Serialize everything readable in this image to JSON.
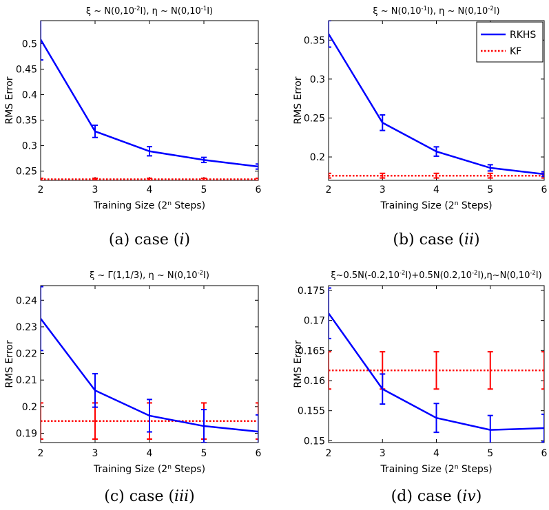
{
  "chart_data": [
    {
      "type": "line",
      "title": "ξ ~ N(0,10-2I), η ~ N(0,10-1I)",
      "title_parts": [
        "ξ ~ N(0,10",
        "-2",
        "I), η ~ N(0,10",
        "-1",
        "I)"
      ],
      "caption": "(a) case (i)",
      "caption_parts": [
        "(a) case (",
        "i",
        ")"
      ],
      "xlabel": "Training Size (2n Steps)",
      "xlabel_parts": [
        "Training Size (2",
        "n",
        " Steps)"
      ],
      "ylabel": "RMS Error",
      "x": [
        2,
        3,
        4,
        5,
        6
      ],
      "xlim": [
        2,
        6
      ],
      "ylim": [
        0.232,
        0.545
      ],
      "yticks": [
        0.25,
        0.3,
        0.35,
        0.4,
        0.45,
        0.5
      ],
      "ytick_labels": [
        "0.25",
        "0.3",
        "0.35",
        "0.4",
        "0.45",
        "0.5"
      ],
      "series": [
        {
          "name": "RKHS",
          "color": "#0000ff",
          "dash": "solid",
          "values": [
            0.508,
            0.328,
            0.289,
            0.272,
            0.259
          ],
          "errors": [
            0.04,
            0.012,
            0.009,
            0.005,
            0.005
          ]
        },
        {
          "name": "KF",
          "color": "#ff0000",
          "dash": "dotted",
          "values": [
            0.234,
            0.234,
            0.234,
            0.234,
            0.234
          ],
          "errors": [
            0.002,
            0.002,
            0.002,
            0.002,
            0.002
          ]
        }
      ]
    },
    {
      "type": "line",
      "title": "ξ ~ N(0,10-1I), η ~ N(0,10-2I)",
      "title_parts": [
        "ξ ~ N(0,10",
        "-1",
        "I), η ~ N(0,10",
        "-2",
        "I)"
      ],
      "caption": "(b) case (ii)",
      "caption_parts": [
        "(b) case (",
        "ii",
        ")"
      ],
      "xlabel": "Training Size (2n Steps)",
      "xlabel_parts": [
        "Training Size (2",
        "n",
        " Steps)"
      ],
      "ylabel": "RMS Error",
      "x": [
        2,
        3,
        4,
        5,
        6
      ],
      "xlim": [
        2,
        6
      ],
      "ylim": [
        0.17,
        0.375
      ],
      "yticks": [
        0.2,
        0.25,
        0.3,
        0.35
      ],
      "ytick_labels": [
        "0.2",
        "0.25",
        "0.3",
        "0.35"
      ],
      "legend": {
        "position": "top-right",
        "entries": [
          "RKHS",
          "KF"
        ]
      },
      "series": [
        {
          "name": "RKHS",
          "color": "#0000ff",
          "dash": "solid",
          "values": [
            0.358,
            0.244,
            0.207,
            0.186,
            0.178
          ],
          "errors": [
            0.017,
            0.01,
            0.006,
            0.004,
            0.003
          ]
        },
        {
          "name": "KF",
          "color": "#ff0000",
          "dash": "dotted",
          "values": [
            0.176,
            0.176,
            0.176,
            0.176,
            0.176
          ],
          "errors": [
            0.003,
            0.003,
            0.003,
            0.003,
            0.003
          ]
        }
      ]
    },
    {
      "type": "line",
      "title": "ξ ~ Γ(1,1/3), η ~ N(0,10-2I)",
      "title_parts": [
        "ξ ~ Γ(1,1/3), η ~ N(0,10",
        "-2",
        "I)"
      ],
      "caption": "(c) case (iii)",
      "caption_parts": [
        "(c) case (",
        "iii",
        ")"
      ],
      "xlabel": "Training Size (2n Steps)",
      "xlabel_parts": [
        "Training Size (2",
        "n",
        " Steps)"
      ],
      "ylabel": "RMS Error",
      "x": [
        2,
        3,
        4,
        5,
        6
      ],
      "xlim": [
        2,
        6
      ],
      "ylim": [
        0.1865,
        0.2455
      ],
      "yticks": [
        0.19,
        0.2,
        0.21,
        0.22,
        0.23,
        0.24
      ],
      "ytick_labels": [
        "0.19",
        "0.2",
        "0.21",
        "0.22",
        "0.23",
        "0.24"
      ],
      "series": [
        {
          "name": "RKHS",
          "color": "#0000ff",
          "dash": "solid",
          "values": [
            0.2331,
            0.2061,
            0.1966,
            0.1927,
            0.1906
          ],
          "errors": [
            0.012,
            0.0063,
            0.0061,
            0.0062,
            0.0063
          ]
        },
        {
          "name": "KF",
          "color": "#ff0000",
          "dash": "dotted",
          "values": [
            0.1946,
            0.1946,
            0.1946,
            0.1946,
            0.1946
          ],
          "errors": [
            0.0068,
            0.0068,
            0.0068,
            0.0068,
            0.0068
          ]
        }
      ]
    },
    {
      "type": "line",
      "title": "ξ~0.5N(-0.2,10-2I)+0.5N(0.2,10-2I),η~N(0,10-2I)",
      "title_parts": [
        "ξ~0.5N(-0.2,10",
        "-2",
        "I)+0.5N(0.2,10",
        "-2",
        "I),η~N(0,10",
        "-2",
        "I)"
      ],
      "caption": "(d) case (iv)",
      "caption_parts": [
        "(d) case (",
        "iv",
        ")"
      ],
      "xlabel": "Training Size (2n Steps)",
      "xlabel_parts": [
        "Training Size (2",
        "n",
        " Steps)"
      ],
      "ylabel": "RMS Error",
      "x": [
        2,
        3,
        4,
        5,
        6
      ],
      "xlim": [
        2,
        6
      ],
      "ylim": [
        0.1497,
        0.1758
      ],
      "yticks": [
        0.15,
        0.155,
        0.16,
        0.165,
        0.17,
        0.175
      ],
      "ytick_labels": [
        "0.15",
        "0.155",
        "0.16",
        "0.165",
        "0.17",
        "0.175"
      ],
      "series": [
        {
          "name": "RKHS",
          "color": "#0000ff",
          "dash": "solid",
          "values": [
            0.1712,
            0.1586,
            0.1538,
            0.1518,
            0.1521
          ],
          "errors": [
            0.0042,
            0.0025,
            0.0024,
            0.0024,
            0.0023
          ]
        },
        {
          "name": "KF",
          "color": "#ff0000",
          "dash": "dotted",
          "values": [
            0.1617,
            0.1617,
            0.1617,
            0.1617,
            0.1617
          ],
          "errors": [
            0.0031,
            0.0031,
            0.0031,
            0.0031,
            0.0031
          ]
        }
      ]
    }
  ]
}
